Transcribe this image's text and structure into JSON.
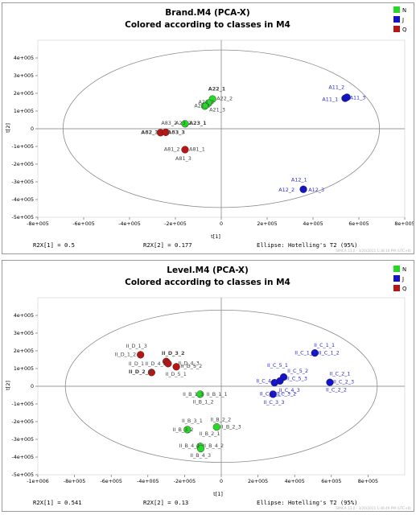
{
  "colors": {
    "N": "#27d927",
    "J": "#1313c8",
    "Q": "#b81515",
    "ellipse": "#8a8a8a",
    "J_label": "#2a2acc",
    "label": "#444444"
  },
  "chart_data": [
    {
      "type": "scatter",
      "title": "Brand.M4 (PCA-X)",
      "subtitle": "Colored according to classes in M4",
      "xlabel": "t[1]",
      "ylabel": "t[2]",
      "xlim": [
        -800000,
        800000
      ],
      "ylim": [
        -500000,
        500000
      ],
      "xticks": [
        "-8e+005",
        "-6e+005",
        "-4e+005",
        "-2e+005",
        "0",
        "2e+005",
        "4e+005",
        "6e+005",
        "8e+005"
      ],
      "yticks": [
        "4e+005",
        "3e+005",
        "2e+005",
        "1e+005",
        "0",
        "-1e+005",
        "-2e+005",
        "-3e+005",
        "-4e+005",
        "-5e+005"
      ],
      "legend": [
        "N",
        "J",
        "Q"
      ],
      "legend_position": "top-right",
      "ellipse": {
        "cx": 0,
        "cy": 0,
        "rx": 690000,
        "ry": 445000
      },
      "footer": {
        "r2x1": "R2X[1] = 0.5",
        "r2x2": "R2X[2] = 0.177",
        "ellipse": "Ellipse: Hotelling's T2 (95%)"
      },
      "watermark": "SIMCA 13.0 - 3/20/2015 1:38:16 PM (UTC+8)",
      "points": [
        {
          "x": -38000,
          "y": 168000,
          "cls": "N"
        },
        {
          "x": -55000,
          "y": 145000,
          "cls": "N"
        },
        {
          "x": -72000,
          "y": 128000,
          "cls": "N"
        },
        {
          "x": -158000,
          "y": 28000,
          "cls": "N"
        },
        {
          "x": 540000,
          "y": 172000,
          "cls": "J"
        },
        {
          "x": 548000,
          "y": 178000,
          "cls": "J"
        },
        {
          "x": 358000,
          "y": -342000,
          "cls": "J"
        },
        {
          "x": -265000,
          "y": -22000,
          "cls": "Q"
        },
        {
          "x": -242000,
          "y": -20000,
          "cls": "Q"
        },
        {
          "x": -158000,
          "y": -118000,
          "cls": "Q"
        }
      ],
      "labels": [
        {
          "text": "A22_1",
          "x": -57000,
          "y": 215000,
          "bold": true,
          "cls": "N"
        },
        {
          "text": "A22_2",
          "x": -20000,
          "y": 162000,
          "bold": false,
          "cls": "N"
        },
        {
          "text": "A21_2",
          "x": -100000,
          "y": 140000,
          "bold": false,
          "cls": "N"
        },
        {
          "text": "A21_1",
          "x": -118000,
          "y": 121000,
          "bold": false,
          "cls": "N"
        },
        {
          "text": "A21_3",
          "x": -52000,
          "y": 97000,
          "bold": false,
          "cls": "N"
        },
        {
          "text": "A83_2",
          "x": -262000,
          "y": 22000,
          "bold": false,
          "cls": "N"
        },
        {
          "text": "A23_2",
          "x": -200000,
          "y": 22000,
          "bold": false,
          "cls": "N"
        },
        {
          "text": "A23_1",
          "x": -140000,
          "y": 22000,
          "bold": true,
          "cls": "N"
        },
        {
          "text": "A11_2",
          "x": 468000,
          "y": 225000,
          "bold": false,
          "cls": "J"
        },
        {
          "text": "A11_1",
          "x": 440000,
          "y": 157000,
          "bold": false,
          "cls": "J"
        },
        {
          "text": "A11_3",
          "x": 560000,
          "y": 167000,
          "bold": false,
          "cls": "J"
        },
        {
          "text": "A12_1",
          "x": 305000,
          "y": -298000,
          "bold": false,
          "cls": "J"
        },
        {
          "text": "A12_2",
          "x": 250000,
          "y": -355000,
          "bold": false,
          "cls": "J"
        },
        {
          "text": "A12_3",
          "x": 380000,
          "y": -355000,
          "bold": false,
          "cls": "J"
        },
        {
          "text": "A82_3",
          "x": -350000,
          "y": -30000,
          "bold": true,
          "cls": "Q"
        },
        {
          "text": "A83_3",
          "x": -234000,
          "y": -30000,
          "bold": true,
          "cls": "Q"
        },
        {
          "text": "A81_2",
          "x": -250000,
          "y": -126000,
          "bold": false,
          "cls": "Q"
        },
        {
          "text": "A81_1",
          "x": -140000,
          "y": -126000,
          "bold": false,
          "cls": "Q"
        },
        {
          "text": "A81_3",
          "x": -200000,
          "y": -178000,
          "bold": false,
          "cls": "Q"
        }
      ]
    },
    {
      "type": "scatter",
      "title": "Level.M4 (PCA-X)",
      "subtitle": "Colored according to classes in M4",
      "xlabel": "t[1]",
      "ylabel": "t[2]",
      "xlim": [
        -1000000,
        1000000
      ],
      "ylim": [
        -500000,
        500000
      ],
      "xticks": [
        "-1e+006",
        "-8e+005",
        "-6e+005",
        "-4e+005",
        "-2e+005",
        "0",
        "2e+005",
        "4e+005",
        "6e+005",
        "8e+005"
      ],
      "yticks": [
        "4e+005",
        "3e+005",
        "2e+005",
        "1e+005",
        "0",
        "-1e+005",
        "-2e+005",
        "-3e+005",
        "-4e+005",
        "-5e+005"
      ],
      "legend": [
        "N",
        "J",
        "Q"
      ],
      "legend_position": "top-right",
      "ellipse": {
        "cx": 0,
        "cy": 0,
        "rx": 850000,
        "ry": 430000
      },
      "footer": {
        "r2x1": "R2X[1] = 0.541",
        "r2x2": "R2X[2] = 0.13",
        "ellipse": "Ellipse: Hotelling's T2 (95%)"
      },
      "watermark": "SIMCA 13.0 - 3/20/2015 1:48:49 PM (UTC+8)",
      "points": [
        {
          "x": -115000,
          "y": -45000,
          "cls": "N"
        },
        {
          "x": -185000,
          "y": -245000,
          "cls": "N"
        },
        {
          "x": -25000,
          "y": -230000,
          "cls": "N"
        },
        {
          "x": -115000,
          "y": -340000,
          "cls": "N"
        },
        {
          "x": -112000,
          "y": -352000,
          "cls": "N"
        },
        {
          "x": 510000,
          "y": 188000,
          "cls": "J"
        },
        {
          "x": 340000,
          "y": 52000,
          "cls": "J"
        },
        {
          "x": 320000,
          "y": 30000,
          "cls": "J"
        },
        {
          "x": 290000,
          "y": 20000,
          "cls": "J"
        },
        {
          "x": 282000,
          "y": -45000,
          "cls": "J"
        },
        {
          "x": 592000,
          "y": 22000,
          "cls": "J"
        },
        {
          "x": -440000,
          "y": 178000,
          "cls": "Q"
        },
        {
          "x": -300000,
          "y": 140000,
          "cls": "Q"
        },
        {
          "x": -290000,
          "y": 128000,
          "cls": "Q"
        },
        {
          "x": -245000,
          "y": 110000,
          "cls": "Q"
        },
        {
          "x": -380000,
          "y": 78000,
          "cls": "Q"
        }
      ],
      "labels": [
        {
          "text": "II_D_1_3",
          "x": -520000,
          "y": 218000,
          "bold": false,
          "cls": "Q"
        },
        {
          "text": "II_D_1_2",
          "x": -580000,
          "y": 170000,
          "bold": false,
          "cls": "Q"
        },
        {
          "text": "II_D_3_2",
          "x": -325000,
          "y": 178000,
          "bold": true,
          "cls": "Q"
        },
        {
          "text": "II_D_1",
          "x": -505000,
          "y": 118000,
          "bold": false,
          "cls": "Q"
        },
        {
          "text": "II_D_4_3",
          "x": -415000,
          "y": 118000,
          "bold": false,
          "cls": "Q"
        },
        {
          "text": "II_D_4_3",
          "x": -235000,
          "y": 120000,
          "bold": false,
          "cls": "Q"
        },
        {
          "text": "II_D_5_2",
          "x": -220000,
          "y": 105000,
          "bold": false,
          "cls": "Q"
        },
        {
          "text": "II_D_2_3",
          "x": -505000,
          "y": 72000,
          "bold": true,
          "cls": "Q"
        },
        {
          "text": "II_D_5_1",
          "x": -305000,
          "y": 60000,
          "bold": false,
          "cls": "Q"
        },
        {
          "text": "II_C_1_1",
          "x": 505000,
          "y": 222000,
          "bold": false,
          "cls": "J"
        },
        {
          "text": "II_C_1_3",
          "x": 400000,
          "y": 180000,
          "bold": false,
          "cls": "J"
        },
        {
          "text": "II_C_1_2",
          "x": 530000,
          "y": 180000,
          "bold": false,
          "cls": "J"
        },
        {
          "text": "II_C_5_1",
          "x": 250000,
          "y": 108000,
          "bold": false,
          "cls": "J"
        },
        {
          "text": "II_C_5_2",
          "x": 360000,
          "y": 78000,
          "bold": false,
          "cls": "J"
        },
        {
          "text": "II_C_5_3",
          "x": 355000,
          "y": 35000,
          "bold": false,
          "cls": "J"
        },
        {
          "text": "II_C_4_1",
          "x": 190000,
          "y": 20000,
          "bold": false,
          "cls": "J"
        },
        {
          "text": "II_C_2_1",
          "x": 590000,
          "y": 62000,
          "bold": false,
          "cls": "J"
        },
        {
          "text": "II_C_2_3",
          "x": 610000,
          "y": 15000,
          "bold": false,
          "cls": "J"
        },
        {
          "text": "II_C_4_3",
          "x": 315000,
          "y": -32000,
          "bold": false,
          "cls": "J"
        },
        {
          "text": "II_C_2_2",
          "x": 570000,
          "y": -30000,
          "bold": false,
          "cls": "J"
        },
        {
          "text": "II_C_3_1",
          "x": 210000,
          "y": -52000,
          "bold": false,
          "cls": "J"
        },
        {
          "text": "II_C_3_2",
          "x": 295000,
          "y": -52000,
          "bold": false,
          "cls": "J"
        },
        {
          "text": "II_C_3_3",
          "x": 230000,
          "y": -100000,
          "bold": false,
          "cls": "J"
        },
        {
          "text": "II_B_1_3",
          "x": -210000,
          "y": -55000,
          "bold": false,
          "cls": "N"
        },
        {
          "text": "II_B_1_1",
          "x": -80000,
          "y": -55000,
          "bold": false,
          "cls": "N"
        },
        {
          "text": "II_B_1_2",
          "x": -155000,
          "y": -98000,
          "bold": false,
          "cls": "N"
        },
        {
          "text": "II_B_3_1",
          "x": -215000,
          "y": -205000,
          "bold": false,
          "cls": "N"
        },
        {
          "text": "II_B_3_2",
          "x": -265000,
          "y": -255000,
          "bold": false,
          "cls": "N"
        },
        {
          "text": "II_B_2_2",
          "x": -60000,
          "y": -198000,
          "bold": false,
          "cls": "N"
        },
        {
          "text": "II_B_2_3",
          "x": -5000,
          "y": -238000,
          "bold": false,
          "cls": "N"
        },
        {
          "text": "II_B_2_1",
          "x": -120000,
          "y": -278000,
          "bold": false,
          "cls": "N"
        },
        {
          "text": "II_B_4_1",
          "x": -230000,
          "y": -345000,
          "bold": false,
          "cls": "N"
        },
        {
          "text": "II_B_4_2",
          "x": -100000,
          "y": -345000,
          "bold": false,
          "cls": "N"
        },
        {
          "text": "II_B_4_3",
          "x": -170000,
          "y": -400000,
          "bold": false,
          "cls": "N"
        }
      ]
    }
  ]
}
